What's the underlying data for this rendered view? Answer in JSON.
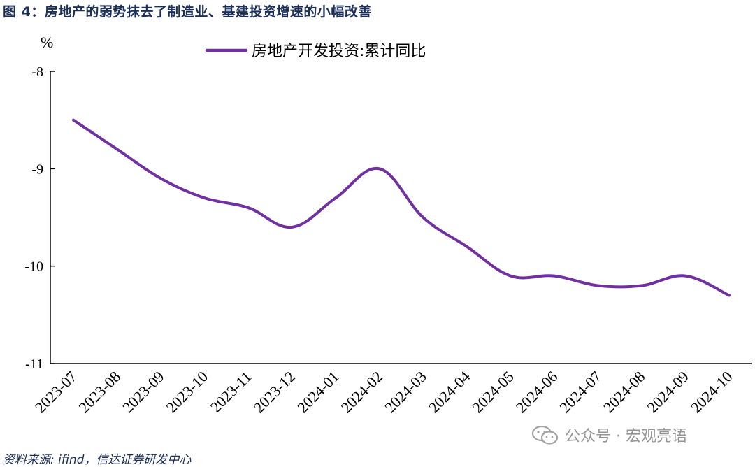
{
  "figure": {
    "title": "图  4：房地产的弱势抹去了制造业、基建投资增速的小幅改善",
    "source": "资料来源: ifind，信达证券研发中心",
    "watermark": "公众号 · 宏观亮语"
  },
  "colors": {
    "series": "#7030a0",
    "title": "#1b2f5b",
    "axis": "#000000"
  },
  "chart_data": {
    "type": "line",
    "title": "",
    "ylabel": "%",
    "xlabel": "",
    "ylim": [
      -11,
      -8
    ],
    "yticks": [
      -8,
      -9,
      -10,
      -11
    ],
    "ytick_labels": [
      "-8",
      "-9",
      "-10",
      "-11"
    ],
    "grid": false,
    "legend_position": "top-center",
    "categories": [
      "2023-07",
      "2023-08",
      "2023-09",
      "2023-10",
      "2023-11",
      "2023-12",
      "2024-01",
      "2024-02",
      "2024-03",
      "2024-04",
      "2024-05",
      "2024-06",
      "2024-07",
      "2024-08",
      "2024-09",
      "2024-10"
    ],
    "series": [
      {
        "name": "房地产开发投资:累计同比",
        "values": [
          -8.5,
          -8.8,
          -9.1,
          -9.3,
          -9.4,
          -9.6,
          -9.3,
          -9.0,
          -9.5,
          -9.8,
          -10.1,
          -10.1,
          -10.2,
          -10.2,
          -10.1,
          -10.3
        ]
      }
    ]
  }
}
